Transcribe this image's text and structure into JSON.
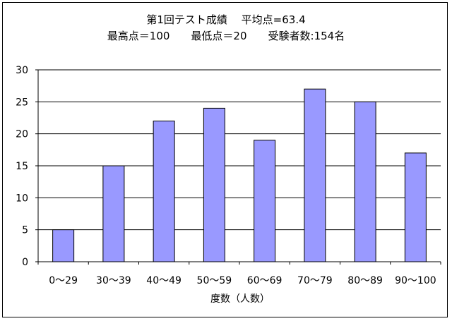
{
  "chart_data": {
    "type": "bar",
    "title_line1": "第1回テスト成績　 平均点=63.4",
    "title_line2": "最高点＝100　　最低点＝20　　受験者数:154名",
    "xlabel": "度数（人数）",
    "ylabel": "",
    "categories": [
      "0〜29",
      "30〜39",
      "40〜49",
      "50〜59",
      "60〜69",
      "70〜79",
      "80〜89",
      "90〜100"
    ],
    "values": [
      5,
      15,
      22,
      24,
      19,
      27,
      25,
      17
    ],
    "ylim": [
      0,
      30
    ],
    "yticks": [
      "0",
      "5",
      "10",
      "15",
      "20",
      "25",
      "30"
    ],
    "grid": true,
    "legend": "none",
    "colors": {
      "bar_fill": "#9999ff",
      "bar_stroke": "#000000",
      "grid": "#000000"
    }
  }
}
